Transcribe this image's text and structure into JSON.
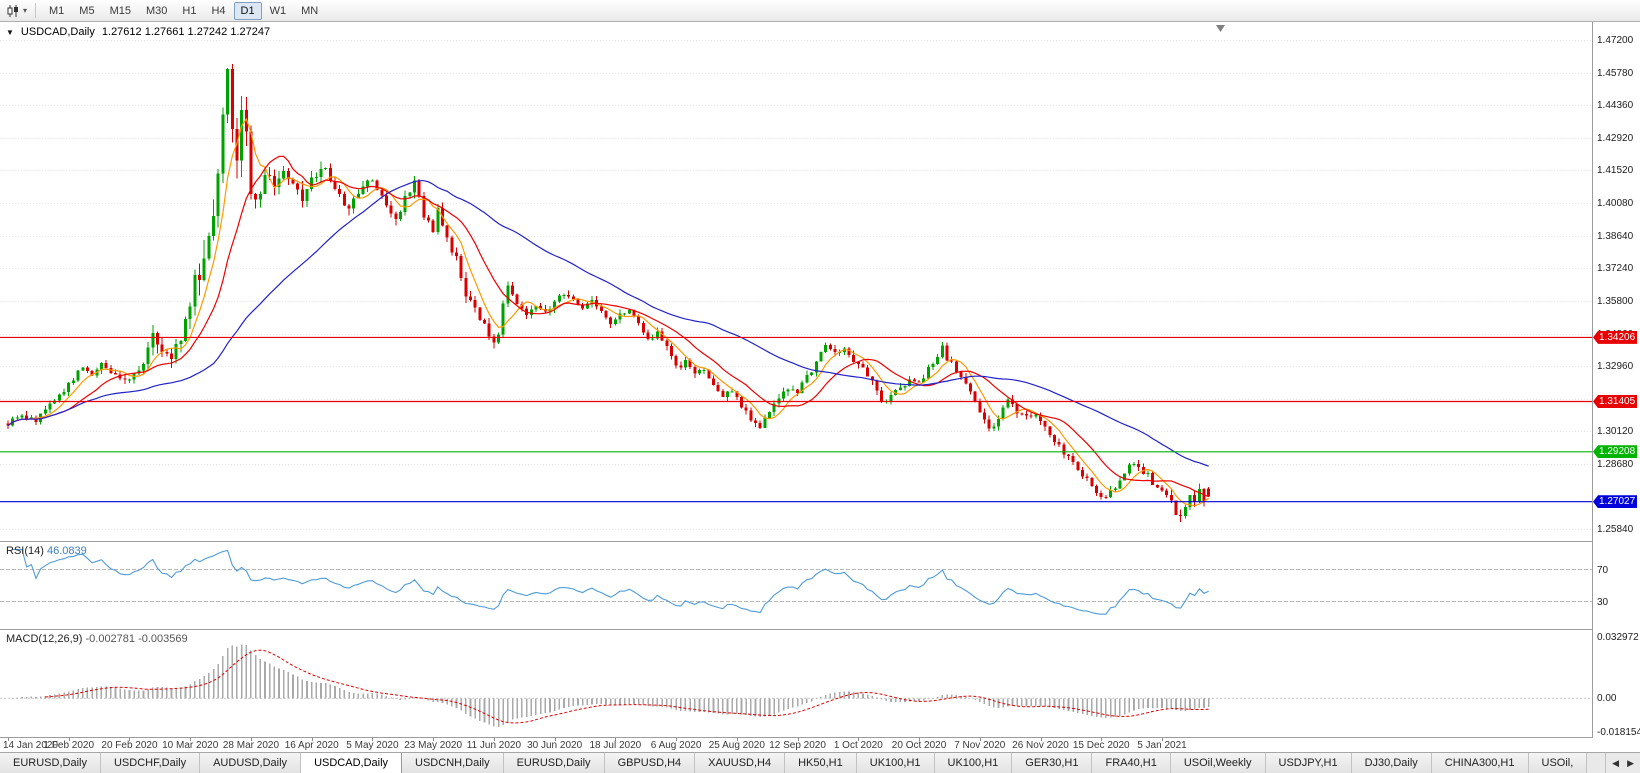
{
  "icons": {
    "one_click": "▼",
    "caret_down": "▾",
    "tab_scroll_left": "◀",
    "tab_scroll_right": "▶"
  },
  "toolbar": {
    "timeframes": [
      "M1",
      "M5",
      "M15",
      "M30",
      "H1",
      "H4",
      "D1",
      "W1",
      "MN"
    ],
    "active_timeframe": "D1"
  },
  "main_chart": {
    "title_symbol": "USDCAD,Daily",
    "title_ohlc": "1.27612 1.27661 1.27242 1.27247",
    "price_axis_labels": [
      "1.47200",
      "1.45780",
      "1.44360",
      "1.42920",
      "1.41520",
      "1.40080",
      "1.38640",
      "1.37240",
      "1.35800",
      "1.34360",
      "1.32960",
      "1.31520",
      "1.30120",
      "1.28680",
      "1.25840"
    ],
    "hlines": [
      {
        "price": 1.34206,
        "label": "1.34206",
        "color": "#e80000"
      },
      {
        "price": 1.31405,
        "label": "1.31405",
        "color": "#e80000"
      },
      {
        "price": 1.29208,
        "label": "1.29208",
        "color": "#00b400"
      },
      {
        "price": 1.27027,
        "label": "1.27027",
        "color": "#0000dc"
      }
    ]
  },
  "rsi": {
    "label": "RSI(14)",
    "value": "46.0839",
    "period": 14,
    "levels": [
      70,
      30
    ],
    "color": "#4f9bd8"
  },
  "macd": {
    "label": "MACD(12,26,9)",
    "values": "-0.002781 -0.003569",
    "fast": 12,
    "slow": 26,
    "signal": 9,
    "axis_max": "0.032972",
    "axis_zero": "0.00",
    "axis_min": "-0.018154",
    "hist_color": "#a9a9a9",
    "signal_color": "#e00000"
  },
  "time_axis": {
    "labels": [
      "14 Jan 2020",
      "1 Feb 2020",
      "20 Feb 2020",
      "10 Mar 2020",
      "28 Mar 2020",
      "16 Apr 2020",
      "5 May 2020",
      "23 May 2020",
      "11 Jun 2020",
      "30 Jun 2020",
      "18 Jul 2020",
      "6 Aug 2020",
      "25 Aug 2020",
      "12 Sep 2020",
      "1 Oct 2020",
      "20 Oct 2020",
      "7 Nov 2020",
      "26 Nov 2020",
      "15 Dec 2020",
      "5 Jan 2021"
    ]
  },
  "tabbar": {
    "tabs": [
      "EURUSD,Daily",
      "USDCHF,Daily",
      "AUDUSD,Daily",
      "USDCAD,Daily",
      "USDCNH,Daily",
      "EURUSD,Daily",
      "GBPUSD,H4",
      "XAUUSD,H4",
      "HK50,H1",
      "UK100,H1",
      "UK100,H1",
      "GER30,H1",
      "FRA40,H1",
      "USOil,Weekly",
      "USDJPY,H1",
      "DJ30,Daily",
      "CHINA300,H1",
      "USOil,"
    ],
    "active_index": 3
  },
  "chart_data": {
    "type": "candlestick",
    "symbol": "USDCAD",
    "timeframe": "Daily",
    "num_days": 258,
    "days_per_tick": 13,
    "ylim": [
      1.2531,
      1.4799
    ],
    "last_candle": {
      "open": 1.27612,
      "high": 1.27661,
      "low": 1.27242,
      "close": 1.27247
    },
    "up_color": "#00a200",
    "down_color": "#d80000",
    "moving_averages": [
      {
        "period": 6,
        "color": "#ff9900"
      },
      {
        "period": 14,
        "color": "#f00000"
      },
      {
        "period": 45,
        "color": "#2222cc"
      }
    ],
    "price_waypoints": [
      [
        0,
        1.3045
      ],
      [
        3,
        1.3075
      ],
      [
        6,
        1.306
      ],
      [
        9,
        1.3125
      ],
      [
        12,
        1.319
      ],
      [
        14,
        1.324
      ],
      [
        16,
        1.329
      ],
      [
        18,
        1.3262
      ],
      [
        20,
        1.33
      ],
      [
        22,
        1.327
      ],
      [
        24,
        1.3235
      ],
      [
        26,
        1.3245
      ],
      [
        28,
        1.327
      ],
      [
        30,
        1.336
      ],
      [
        31,
        1.343
      ],
      [
        33,
        1.3375
      ],
      [
        35,
        1.334
      ],
      [
        37,
        1.3425
      ],
      [
        39,
        1.356
      ],
      [
        40,
        1.366
      ],
      [
        42,
        1.378
      ],
      [
        44,
        1.398
      ],
      [
        45,
        1.418
      ],
      [
        46,
        1.442
      ],
      [
        47,
        1.464
      ],
      [
        48,
        1.438
      ],
      [
        49,
        1.421
      ],
      [
        50,
        1.446
      ],
      [
        51,
        1.43
      ],
      [
        52,
        1.407
      ],
      [
        53,
        1.399
      ],
      [
        55,
        1.414
      ],
      [
        57,
        1.407
      ],
      [
        59,
        1.416
      ],
      [
        61,
        1.408
      ],
      [
        63,
        1.402
      ],
      [
        65,
        1.411
      ],
      [
        67,
        1.417
      ],
      [
        69,
        1.411
      ],
      [
        71,
        1.404
      ],
      [
        73,
        1.397
      ],
      [
        75,
        1.407
      ],
      [
        77,
        1.412
      ],
      [
        79,
        1.407
      ],
      [
        81,
        1.399
      ],
      [
        83,
        1.393
      ],
      [
        85,
        1.404
      ],
      [
        87,
        1.409
      ],
      [
        89,
        1.396
      ],
      [
        91,
        1.389
      ],
      [
        92,
        1.399
      ],
      [
        94,
        1.384
      ],
      [
        96,
        1.376
      ],
      [
        98,
        1.361
      ],
      [
        100,
        1.355
      ],
      [
        102,
        1.347
      ],
      [
        104,
        1.339
      ],
      [
        105,
        1.343
      ],
      [
        106,
        1.356
      ],
      [
        107,
        1.363
      ],
      [
        109,
        1.357
      ],
      [
        111,
        1.353
      ],
      [
        113,
        1.3565
      ],
      [
        115,
        1.3525
      ],
      [
        117,
        1.3575
      ],
      [
        119,
        1.3615
      ],
      [
        121,
        1.359
      ],
      [
        123,
        1.355
      ],
      [
        125,
        1.3585
      ],
      [
        127,
        1.3535
      ],
      [
        129,
        1.3475
      ],
      [
        131,
        1.3515
      ],
      [
        133,
        1.355
      ],
      [
        135,
        1.349
      ],
      [
        137,
        1.341
      ],
      [
        139,
        1.3435
      ],
      [
        141,
        1.337
      ],
      [
        143,
        1.329
      ],
      [
        145,
        1.331
      ],
      [
        147,
        1.3255
      ],
      [
        149,
        1.3285
      ],
      [
        151,
        1.3215
      ],
      [
        153,
        1.316
      ],
      [
        155,
        1.3195
      ],
      [
        157,
        1.312
      ],
      [
        159,
        1.307
      ],
      [
        161,
        1.3025
      ],
      [
        163,
        1.3105
      ],
      [
        165,
        1.3165
      ],
      [
        167,
        1.3195
      ],
      [
        169,
        1.3185
      ],
      [
        171,
        1.3245
      ],
      [
        173,
        1.331
      ],
      [
        175,
        1.3385
      ],
      [
        177,
        1.335
      ],
      [
        179,
        1.338
      ],
      [
        181,
        1.332
      ],
      [
        183,
        1.329
      ],
      [
        185,
        1.322
      ],
      [
        187,
        1.314
      ],
      [
        189,
        1.316
      ],
      [
        191,
        1.3205
      ],
      [
        193,
        1.3235
      ],
      [
        195,
        1.3215
      ],
      [
        197,
        1.3285
      ],
      [
        199,
        1.333
      ],
      [
        200,
        1.3385
      ],
      [
        201,
        1.333
      ],
      [
        203,
        1.328
      ],
      [
        205,
        1.322
      ],
      [
        207,
        1.314
      ],
      [
        209,
        1.306
      ],
      [
        210,
        1.301
      ],
      [
        212,
        1.3065
      ],
      [
        214,
        1.314
      ],
      [
        216,
        1.31
      ],
      [
        218,
        1.307
      ],
      [
        220,
        1.309
      ],
      [
        222,
        1.303
      ],
      [
        224,
        1.297
      ],
      [
        226,
        1.2915
      ],
      [
        228,
        1.287
      ],
      [
        230,
        1.2825
      ],
      [
        232,
        1.2775
      ],
      [
        234,
        1.2725
      ],
      [
        236,
        1.2745
      ],
      [
        238,
        1.2795
      ],
      [
        240,
        1.287
      ],
      [
        242,
        1.2845
      ],
      [
        244,
        1.282
      ],
      [
        246,
        1.2755
      ],
      [
        248,
        1.2735
      ],
      [
        249,
        1.2695
      ],
      [
        250,
        1.2655
      ],
      [
        251,
        1.2625
      ],
      [
        252,
        1.268
      ],
      [
        253,
        1.2715
      ],
      [
        254,
        1.269
      ],
      [
        255,
        1.2745
      ],
      [
        256,
        1.2715
      ],
      [
        257,
        1.2725
      ]
    ]
  }
}
